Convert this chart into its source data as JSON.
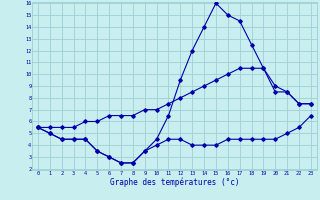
{
  "xlabel": "Graphe des températures (°c)",
  "bg_color": "#c8eef0",
  "grid_color": "#9dd0d4",
  "line_color": "#0000aa",
  "hours": [
    0,
    1,
    2,
    3,
    4,
    5,
    6,
    7,
    8,
    9,
    10,
    11,
    12,
    13,
    14,
    15,
    16,
    17,
    18,
    19,
    20,
    21,
    22,
    23
  ],
  "temp_main": [
    5.5,
    5.0,
    4.5,
    4.5,
    4.5,
    3.5,
    3.0,
    2.5,
    2.5,
    3.5,
    4.5,
    6.5,
    9.5,
    12.0,
    14.0,
    16.0,
    15.0,
    14.5,
    12.5,
    10.5,
    8.5,
    8.5,
    7.5,
    7.5
  ],
  "temp_min": [
    5.5,
    5.0,
    4.5,
    4.5,
    4.5,
    3.5,
    3.0,
    2.5,
    2.5,
    3.5,
    4.0,
    4.5,
    4.5,
    4.0,
    4.0,
    4.0,
    4.5,
    4.5,
    4.5,
    4.5,
    4.5,
    5.0,
    5.5,
    6.5
  ],
  "temp_trend": [
    5.5,
    5.5,
    5.5,
    5.5,
    6.0,
    6.0,
    6.5,
    6.5,
    6.5,
    7.0,
    7.0,
    7.5,
    8.0,
    8.5,
    9.0,
    9.5,
    10.0,
    10.5,
    10.5,
    10.5,
    9.0,
    8.5,
    7.5,
    7.5
  ],
  "ylim": [
    2,
    16
  ],
  "xlim": [
    -0.5,
    23.5
  ],
  "yticks": [
    2,
    3,
    4,
    5,
    6,
    7,
    8,
    9,
    10,
    11,
    12,
    13,
    14,
    15,
    16
  ],
  "xticks": [
    0,
    1,
    2,
    3,
    4,
    5,
    6,
    7,
    8,
    9,
    10,
    11,
    12,
    13,
    14,
    15,
    16,
    17,
    18,
    19,
    20,
    21,
    22,
    23
  ]
}
